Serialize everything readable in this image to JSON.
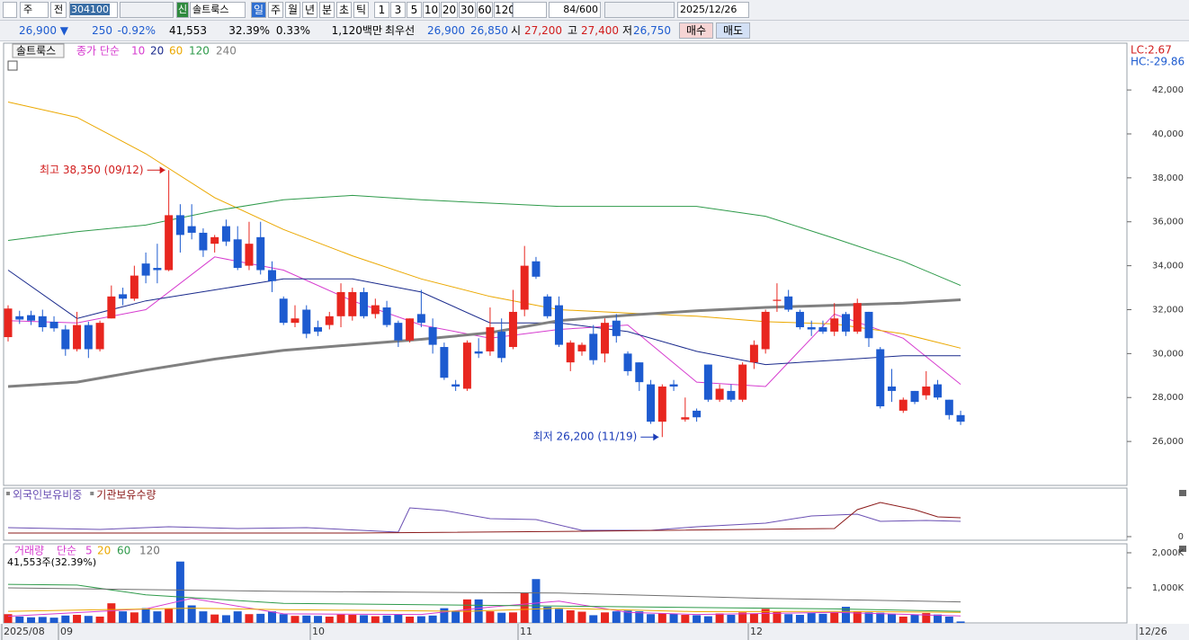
{
  "toolbar": {
    "market": "주",
    "mode": "전",
    "code": "304100",
    "name": "솔트룩스",
    "badge": "신",
    "periods": [
      "일",
      "주",
      "월",
      "년",
      "분",
      "초",
      "틱"
    ],
    "intervals": [
      "1",
      "3",
      "5",
      "10",
      "20",
      "30",
      "60",
      "120"
    ],
    "count": "84",
    "max": "/600",
    "date": "2025/12/26"
  },
  "quote": {
    "price": "26,900 ▼",
    "change": "250",
    "rate": "-0.92%",
    "volume": "41,553",
    "ratio": "32.39%",
    "turnover": "0.33%",
    "amount": "1,120백만",
    "best_label": "최우선",
    "ask": "26,900",
    "bid": "26,850",
    "open_label": "시",
    "open": "27,200",
    "high_label": "고",
    "high": "27,400",
    "low_label": "저",
    "low": "26,750",
    "buy": "매수",
    "sell": "매도"
  },
  "x_labels": [
    "2025/08",
    "09",
    "10",
    "11",
    "12",
    "12/26"
  ],
  "chart_data": [
    {
      "type": "candlestick",
      "title": "솔트룩스",
      "legend_title": "종가 단순",
      "lc": "LC:2.67",
      "hc": "HC:-29.86",
      "up_color": "#e8261f",
      "down_color": "#1d5bd0",
      "open": [
        30750,
        31700,
        31750,
        31700,
        31450,
        31100,
        30200,
        31300,
        30200,
        31600,
        32700,
        32500,
        34100,
        33900,
        33800,
        36300,
        35800,
        35500,
        35000,
        35800,
        35200,
        34000,
        35300,
        33800,
        32500,
        31400,
        32000,
        31200,
        31300,
        31700,
        31700,
        32800,
        31800,
        32100,
        31400,
        30600,
        31800,
        31200,
        30300,
        28600,
        28400,
        30100,
        30100,
        31000,
        30300,
        32000,
        34200,
        32600,
        32200,
        29600,
        30100,
        30900,
        30000,
        31500,
        30000,
        29600,
        28600,
        26900,
        28600,
        27000,
        27400,
        29500,
        27900,
        28300,
        27900,
        29600,
        30200,
        32400,
        32600,
        31900,
        31200,
        31200,
        31000,
        31800,
        31000,
        31900,
        30200,
        28500,
        27400,
        28300,
        28100,
        28600,
        27900,
        27200
      ],
      "high": [
        32200,
        31950,
        31950,
        32000,
        31700,
        31300,
        31900,
        31450,
        31500,
        33100,
        33000,
        34000,
        34600,
        35000,
        38350,
        36800,
        36800,
        35700,
        35400,
        36100,
        35800,
        36000,
        36000,
        34200,
        32600,
        32200,
        32200,
        31500,
        31900,
        33200,
        33000,
        33000,
        32500,
        32400,
        31500,
        31600,
        32900,
        31600,
        30500,
        28800,
        30600,
        30700,
        32100,
        31600,
        32900,
        34900,
        34400,
        32700,
        32600,
        30600,
        30500,
        31300,
        31600,
        31800,
        30100,
        29600,
        28800,
        28600,
        28800,
        28000,
        27500,
        29500,
        28600,
        28600,
        29600,
        30600,
        32000,
        33200,
        32900,
        32000,
        31500,
        31500,
        32300,
        31900,
        32500,
        31900,
        30300,
        29300,
        28000,
        28300,
        29200,
        28800,
        27900,
        27400
      ],
      "low": [
        30550,
        31350,
        31300,
        31000,
        31000,
        29900,
        30100,
        29800,
        30100,
        31600,
        32200,
        32400,
        33200,
        33200,
        33750,
        34600,
        35200,
        34400,
        34600,
        34900,
        33800,
        33800,
        33600,
        32800,
        31300,
        31200,
        30700,
        30800,
        31100,
        31200,
        31500,
        31600,
        31600,
        31200,
        30300,
        30500,
        31200,
        30000,
        28800,
        28300,
        28300,
        29800,
        29900,
        29600,
        30200,
        31700,
        33400,
        31600,
        30300,
        29200,
        29900,
        29500,
        29600,
        30500,
        29000,
        28300,
        26800,
        26200,
        28300,
        26900,
        26900,
        27800,
        27800,
        27800,
        27800,
        29300,
        30000,
        31900,
        31900,
        31100,
        30800,
        30900,
        30800,
        30800,
        30900,
        30300,
        27500,
        27800,
        27300,
        27700,
        27900,
        27900,
        27000,
        26750
      ],
      "close": [
        32050,
        31550,
        31500,
        31200,
        31150,
        30200,
        31300,
        30200,
        31400,
        32600,
        32500,
        33550,
        33550,
        33800,
        36300,
        35400,
        35500,
        34700,
        35300,
        35100,
        33900,
        35000,
        33800,
        33300,
        31400,
        31600,
        30900,
        31000,
        31700,
        32800,
        32800,
        31700,
        32200,
        31300,
        30600,
        31600,
        31400,
        30400,
        28900,
        28500,
        30500,
        30000,
        31200,
        29800,
        31900,
        34000,
        33500,
        31700,
        30400,
        30500,
        30400,
        29700,
        31400,
        30800,
        29200,
        28700,
        26900,
        28500,
        28500,
        27100,
        27100,
        27900,
        28400,
        27900,
        29500,
        30400,
        31900,
        32450,
        32000,
        31200,
        31100,
        31000,
        31600,
        31000,
        32300,
        30700,
        27600,
        28300,
        27900,
        27800,
        28500,
        28000,
        27200,
        26900
      ],
      "series": [
        {
          "name": "10",
          "color": "#d63ccf",
          "x": [
            0,
            6,
            12,
            18,
            24,
            30,
            36,
            42,
            48,
            54,
            60,
            66,
            72,
            78,
            83
          ],
          "values": [
            31500,
            31400,
            32000,
            34400,
            33800,
            32400,
            31300,
            30700,
            31100,
            31300,
            28700,
            28500,
            31800,
            30700,
            28600
          ]
        },
        {
          "name": "20",
          "color": "#1a2a8c",
          "x": [
            0,
            6,
            12,
            18,
            24,
            30,
            36,
            42,
            48,
            54,
            60,
            66,
            72,
            78,
            83
          ],
          "values": [
            33800,
            31600,
            32400,
            32900,
            33400,
            33400,
            32800,
            31400,
            31400,
            31000,
            30100,
            29500,
            29700,
            29900,
            29900
          ]
        },
        {
          "name": "60",
          "color": "#eba800",
          "x": [
            0,
            6,
            12,
            18,
            24,
            30,
            36,
            42,
            48,
            54,
            60,
            66,
            72,
            78,
            83
          ],
          "values": [
            41450,
            40750,
            39100,
            37100,
            35650,
            34450,
            33400,
            32600,
            32000,
            31850,
            31700,
            31450,
            31350,
            30900,
            30250
          ]
        },
        {
          "name": "120",
          "color": "#2e9a4a",
          "x": [
            0,
            6,
            12,
            18,
            24,
            30,
            36,
            42,
            48,
            54,
            60,
            66,
            72,
            78,
            83
          ],
          "values": [
            35150,
            35550,
            35850,
            36500,
            37000,
            37200,
            37000,
            36850,
            36700,
            36700,
            36700,
            36250,
            35250,
            34200,
            33100
          ]
        },
        {
          "name": "240",
          "color": "#808080",
          "x": [
            0,
            6,
            12,
            18,
            24,
            30,
            36,
            42,
            48,
            54,
            60,
            66,
            72,
            78,
            83
          ],
          "values": [
            28500,
            28700,
            29250,
            29750,
            30150,
            30400,
            30650,
            30950,
            31500,
            31750,
            31950,
            32100,
            32200,
            32300,
            32450
          ]
        }
      ],
      "annotations": [
        {
          "text": "최고 38,350 (09/12)",
          "value": 38350,
          "color": "#d11c1c"
        },
        {
          "text": "최저 26,200 (11/19)",
          "value": 26200,
          "color": "#1a3bb8"
        }
      ],
      "ylim": [
        24000,
        44050
      ],
      "yticks": [
        {
          "value": 26000,
          "label": "26,000"
        },
        {
          "value": 28000,
          "label": "28,000"
        },
        {
          "value": 30000,
          "label": "30,000"
        },
        {
          "value": 32000,
          "label": "32,000"
        },
        {
          "value": 34000,
          "label": "34,000"
        },
        {
          "value": 36000,
          "label": "36,000"
        },
        {
          "value": 38000,
          "label": "38,000"
        },
        {
          "value": 40000,
          "label": "40,000"
        },
        {
          "value": 42000,
          "label": "42,000"
        }
      ]
    },
    {
      "type": "line",
      "series": [
        {
          "name": "외국인보유비중",
          "color": "#6a4fb3",
          "x": [
            0,
            8,
            14,
            20,
            26,
            34,
            35,
            38,
            42,
            46,
            50,
            56,
            60,
            66,
            70,
            74,
            76,
            80,
            83
          ],
          "values": [
            2,
            1.6,
            2.2,
            1.8,
            2.0,
            1.0,
            6.4,
            5.8,
            4.0,
            3.8,
            1.4,
            1.4,
            2.2,
            3.0,
            4.6,
            5.0,
            3.4,
            3.6,
            3.4
          ]
        },
        {
          "name": "기관보유수량",
          "color": "#8b1a1a",
          "x": [
            0,
            30,
            50,
            72,
            74,
            76,
            79,
            81,
            83
          ],
          "values": [
            0.8,
            0.8,
            1.2,
            1.8,
            6.0,
            7.6,
            6.0,
            4.4,
            4.2
          ]
        }
      ],
      "ylim": [
        0,
        10
      ],
      "yticks": [
        0
      ]
    },
    {
      "type": "bar",
      "title": "거래량",
      "legend_title": "단순",
      "header": "41,553주(32.39%)",
      "values": [
        250000,
        180000,
        160000,
        170000,
        150000,
        210000,
        230000,
        200000,
        180000,
        560000,
        330000,
        300000,
        420000,
        330000,
        400000,
        1750000,
        500000,
        330000,
        240000,
        220000,
        330000,
        250000,
        260000,
        330000,
        250000,
        200000,
        210000,
        200000,
        180000,
        240000,
        230000,
        220000,
        190000,
        210000,
        230000,
        180000,
        190000,
        210000,
        420000,
        330000,
        670000,
        670000,
        330000,
        290000,
        300000,
        870000,
        1250000,
        460000,
        400000,
        360000,
        320000,
        220000,
        300000,
        330000,
        350000,
        330000,
        250000,
        270000,
        260000,
        230000,
        220000,
        190000,
        270000,
        230000,
        300000,
        260000,
        400000,
        310000,
        250000,
        230000,
        280000,
        260000,
        300000,
        460000,
        320000,
        300000,
        290000,
        260000,
        180000,
        240000,
        280000,
        240000,
        180000,
        41553
      ],
      "series": [
        {
          "name": "5",
          "color": "#d63ccf",
          "x": [
            0,
            12,
            16,
            24,
            36,
            42,
            48,
            54,
            60,
            72,
            83
          ],
          "values": [
            190000,
            400000,
            700000,
            260000,
            240000,
            450000,
            620000,
            300000,
            240000,
            300000,
            200000
          ]
        },
        {
          "name": "20",
          "color": "#eba800",
          "x": [
            0,
            16,
            24,
            40,
            48,
            60,
            72,
            83
          ],
          "values": [
            330000,
            420000,
            380000,
            330000,
            420000,
            320000,
            330000,
            300000
          ]
        },
        {
          "name": "60",
          "color": "#2e9a4a",
          "x": [
            0,
            6,
            12,
            24,
            48,
            72,
            83
          ],
          "values": [
            1100000,
            1080000,
            800000,
            560000,
            480000,
            400000,
            330000
          ]
        },
        {
          "name": "120",
          "color": "#707070",
          "x": [
            0,
            24,
            48,
            66,
            83
          ],
          "values": [
            1000000,
            900000,
            850000,
            700000,
            600000
          ]
        }
      ],
      "ylim": [
        0,
        2230000
      ],
      "yticks": [
        {
          "value": 1000000,
          "label": "1,000K"
        },
        {
          "value": 2000000,
          "label": "2,000K"
        }
      ]
    }
  ]
}
